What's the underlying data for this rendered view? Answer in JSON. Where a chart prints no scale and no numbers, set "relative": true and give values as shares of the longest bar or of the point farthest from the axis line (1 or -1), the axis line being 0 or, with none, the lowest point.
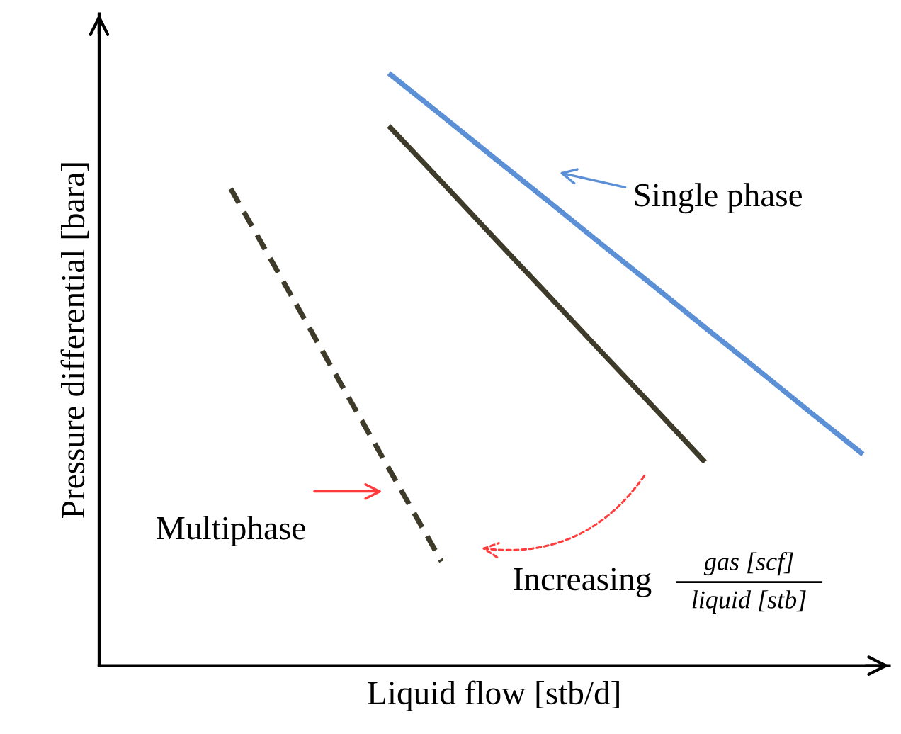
{
  "chart_data": {
    "type": "line",
    "relative": true,
    "xlabel": "Liquid flow [stb/d]",
    "ylabel": "Pressure differential [bara]",
    "categories": [
      null,
      null,
      null,
      null,
      null,
      null,
      null,
      null,
      null,
      null,
      null,
      null,
      null,
      null,
      null
    ],
    "series": [
      {
        "color": "#5b8fd6",
        "line_style": "solid",
        "values": [
          null,
          null,
          null,
          null,
          null,
          1.0,
          0.929,
          0.857,
          0.786,
          0.714,
          0.643,
          0.571,
          0.5,
          0.428,
          0.357
        ]
      },
      {
        "color": "#3f3b2b",
        "line_style": "solid",
        "values": [
          null,
          null,
          null,
          null,
          null,
          0.911,
          0.817,
          0.722,
          0.628,
          0.533,
          0.439,
          0.344,
          null,
          null,
          null
        ]
      },
      {
        "color": "#3f3b2b",
        "line_style": "dashed",
        "values": [
          null,
          null,
          0.805,
          0.648,
          0.49,
          0.333,
          0.176,
          null,
          null,
          null,
          null,
          null,
          null,
          null,
          null
        ]
      }
    ],
    "annotations": [
      "Single phase",
      "Multiphase",
      "Increasing",
      "gas [scf]",
      "liquid [stb]"
    ],
    "marker": "none",
    "legend": false
  }
}
